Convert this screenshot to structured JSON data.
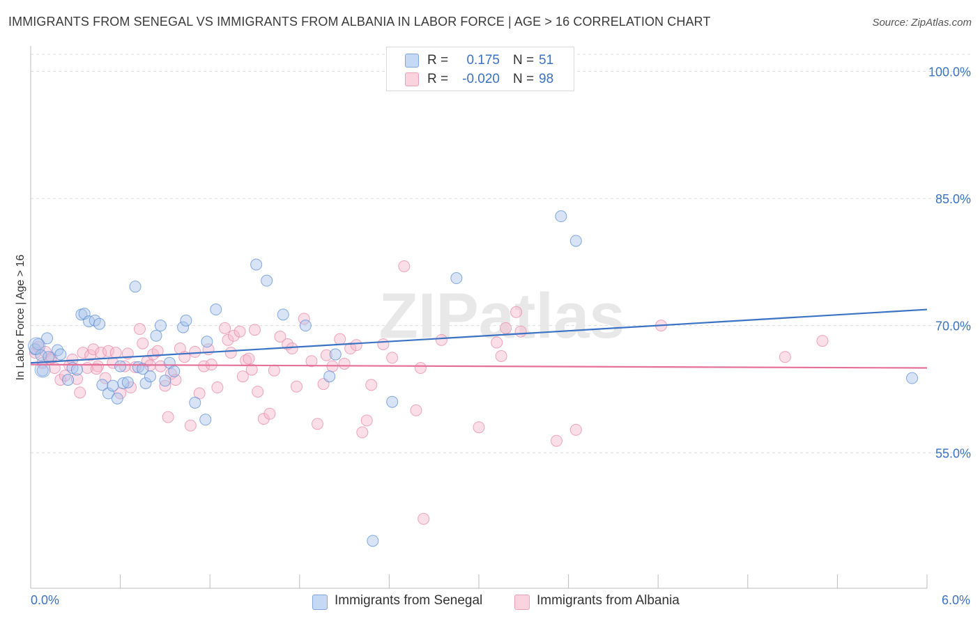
{
  "title": "IMMIGRANTS FROM SENEGAL VS IMMIGRANTS FROM ALBANIA IN LABOR FORCE | AGE > 16 CORRELATION CHART",
  "source": "Source: ZipAtlas.com",
  "watermark": "ZIPatlas",
  "legend_top": {
    "rows": [
      {
        "r_label": "R =",
        "r_value": "0.175",
        "n_label": "N =",
        "n_value": "51",
        "color": "#a8c4ec"
      },
      {
        "r_label": "R =",
        "r_value": "-0.020",
        "n_label": "N =",
        "n_value": "98",
        "color": "#f5b8cc"
      }
    ]
  },
  "legend_bottom": {
    "items": [
      {
        "label": "Immigrants from Senegal",
        "color": "#a8c4ec"
      },
      {
        "label": "Immigrants from Albania",
        "color": "#f5b8cc"
      }
    ]
  },
  "chart_data": {
    "type": "scatter",
    "title": "IMMIGRANTS FROM SENEGAL VS IMMIGRANTS FROM ALBANIA IN LABOR FORCE | AGE > 16 CORRELATION CHART",
    "xlabel": "",
    "ylabel": "In Labor Force | Age > 16",
    "xlim": [
      0,
      6
    ],
    "ylim": [
      39,
      103
    ],
    "x_tick_labels": [
      "0.0%",
      "6.0%"
    ],
    "y_ticks": [
      55,
      70,
      85,
      100
    ],
    "y_tick_labels": [
      "55.0%",
      "70.0%",
      "85.0%",
      "100.0%"
    ],
    "grid": "horizontal dashed",
    "series": [
      {
        "name": "Immigrants from Senegal",
        "color": "#5b8fd6",
        "fill": "#a8c4ec",
        "trend": {
          "x": [
            0,
            6
          ],
          "y": [
            65.6,
            71.9
          ]
        },
        "points": [
          [
            0.03,
            67.2
          ],
          [
            0.05,
            67.8
          ],
          [
            0.07,
            66.5
          ],
          [
            0.08,
            64.7
          ],
          [
            0.11,
            68.5
          ],
          [
            0.12,
            66.3
          ],
          [
            0.18,
            67.1
          ],
          [
            0.2,
            66.6
          ],
          [
            0.25,
            63.6
          ],
          [
            0.28,
            65.0
          ],
          [
            0.31,
            64.8
          ],
          [
            0.34,
            71.3
          ],
          [
            0.36,
            71.4
          ],
          [
            0.39,
            70.5
          ],
          [
            0.43,
            70.6
          ],
          [
            0.46,
            70.2
          ],
          [
            0.48,
            63.0
          ],
          [
            0.52,
            62.0
          ],
          [
            0.55,
            62.9
          ],
          [
            0.58,
            61.4
          ],
          [
            0.6,
            65.2
          ],
          [
            0.62,
            63.2
          ],
          [
            0.65,
            63.3
          ],
          [
            0.7,
            74.6
          ],
          [
            0.72,
            65.1
          ],
          [
            0.75,
            64.9
          ],
          [
            0.77,
            63.2
          ],
          [
            0.8,
            64.0
          ],
          [
            0.84,
            68.8
          ],
          [
            0.87,
            70.0
          ],
          [
            0.9,
            63.5
          ],
          [
            0.93,
            65.6
          ],
          [
            0.96,
            64.6
          ],
          [
            1.02,
            69.8
          ],
          [
            1.04,
            70.6
          ],
          [
            1.1,
            60.9
          ],
          [
            1.17,
            58.9
          ],
          [
            1.18,
            68.1
          ],
          [
            1.24,
            71.9
          ],
          [
            1.51,
            77.2
          ],
          [
            1.58,
            75.3
          ],
          [
            1.69,
            71.3
          ],
          [
            1.84,
            70.0
          ],
          [
            2.0,
            64.0
          ],
          [
            2.04,
            66.6
          ],
          [
            2.29,
            44.6
          ],
          [
            2.42,
            61.0
          ],
          [
            2.85,
            75.6
          ],
          [
            3.55,
            82.9
          ],
          [
            3.65,
            80.0
          ],
          [
            5.9,
            63.8
          ]
        ]
      },
      {
        "name": "Immigrants from Albania",
        "color": "#e88aa8",
        "fill": "#f5b8cc",
        "trend": {
          "x": [
            0,
            6
          ],
          "y": [
            65.4,
            65.0
          ]
        },
        "points": [
          [
            0.03,
            66.8
          ],
          [
            0.05,
            67.5
          ],
          [
            0.08,
            65.6
          ],
          [
            0.1,
            66.9
          ],
          [
            0.13,
            66.0
          ],
          [
            0.16,
            65.0
          ],
          [
            0.2,
            63.6
          ],
          [
            0.23,
            64.1
          ],
          [
            0.26,
            65.3
          ],
          [
            0.28,
            66.0
          ],
          [
            0.31,
            63.7
          ],
          [
            0.33,
            62.1
          ],
          [
            0.35,
            66.8
          ],
          [
            0.38,
            65.0
          ],
          [
            0.4,
            66.5
          ],
          [
            0.42,
            67.2
          ],
          [
            0.45,
            65.2
          ],
          [
            0.47,
            66.8
          ],
          [
            0.5,
            63.8
          ],
          [
            0.52,
            67.0
          ],
          [
            0.55,
            65.6
          ],
          [
            0.57,
            66.8
          ],
          [
            0.6,
            62.0
          ],
          [
            0.63,
            65.2
          ],
          [
            0.65,
            66.7
          ],
          [
            0.67,
            62.7
          ],
          [
            0.7,
            65.1
          ],
          [
            0.73,
            69.6
          ],
          [
            0.75,
            67.9
          ],
          [
            0.78,
            65.8
          ],
          [
            0.8,
            65.3
          ],
          [
            0.82,
            66.6
          ],
          [
            0.85,
            67.0
          ],
          [
            0.87,
            65.2
          ],
          [
            0.9,
            62.9
          ],
          [
            0.92,
            59.2
          ],
          [
            0.94,
            64.3
          ],
          [
            0.97,
            63.6
          ],
          [
            1.0,
            67.3
          ],
          [
            1.03,
            66.3
          ],
          [
            1.07,
            58.2
          ],
          [
            1.1,
            66.9
          ],
          [
            1.13,
            62.0
          ],
          [
            1.16,
            65.2
          ],
          [
            1.19,
            67.2
          ],
          [
            1.21,
            65.4
          ],
          [
            1.25,
            62.7
          ],
          [
            1.3,
            69.7
          ],
          [
            1.32,
            68.3
          ],
          [
            1.34,
            66.8
          ],
          [
            1.36,
            68.8
          ],
          [
            1.4,
            69.3
          ],
          [
            1.42,
            64.0
          ],
          [
            1.44,
            65.9
          ],
          [
            1.46,
            66.1
          ],
          [
            1.48,
            64.8
          ],
          [
            1.52,
            62.2
          ],
          [
            1.56,
            59.0
          ],
          [
            1.6,
            59.6
          ],
          [
            1.63,
            64.7
          ],
          [
            1.67,
            68.7
          ],
          [
            1.72,
            67.8
          ],
          [
            1.75,
            67.3
          ],
          [
            1.78,
            62.8
          ],
          [
            1.83,
            70.8
          ],
          [
            1.88,
            65.8
          ],
          [
            1.92,
            58.4
          ],
          [
            1.96,
            63.1
          ],
          [
            1.98,
            66.5
          ],
          [
            2.02,
            65.2
          ],
          [
            2.07,
            68.4
          ],
          [
            2.1,
            65.5
          ],
          [
            2.14,
            67.3
          ],
          [
            2.18,
            67.7
          ],
          [
            2.22,
            57.4
          ],
          [
            2.25,
            58.8
          ],
          [
            2.28,
            63.0
          ],
          [
            2.36,
            67.8
          ],
          [
            2.42,
            66.2
          ],
          [
            2.5,
            77.0
          ],
          [
            2.58,
            60.0
          ],
          [
            2.61,
            65.0
          ],
          [
            2.63,
            47.2
          ],
          [
            2.75,
            68.3
          ],
          [
            3.0,
            58.0
          ],
          [
            3.12,
            68.0
          ],
          [
            3.15,
            66.4
          ],
          [
            3.18,
            69.7
          ],
          [
            3.25,
            71.6
          ],
          [
            3.28,
            69.3
          ],
          [
            3.52,
            56.4
          ],
          [
            3.65,
            57.7
          ],
          [
            4.22,
            70.0
          ],
          [
            5.05,
            66.3
          ],
          [
            5.3,
            68.2
          ],
          [
            0.14,
            66.2
          ],
          [
            0.44,
            64.9
          ],
          [
            1.5,
            69.5
          ]
        ]
      }
    ]
  }
}
